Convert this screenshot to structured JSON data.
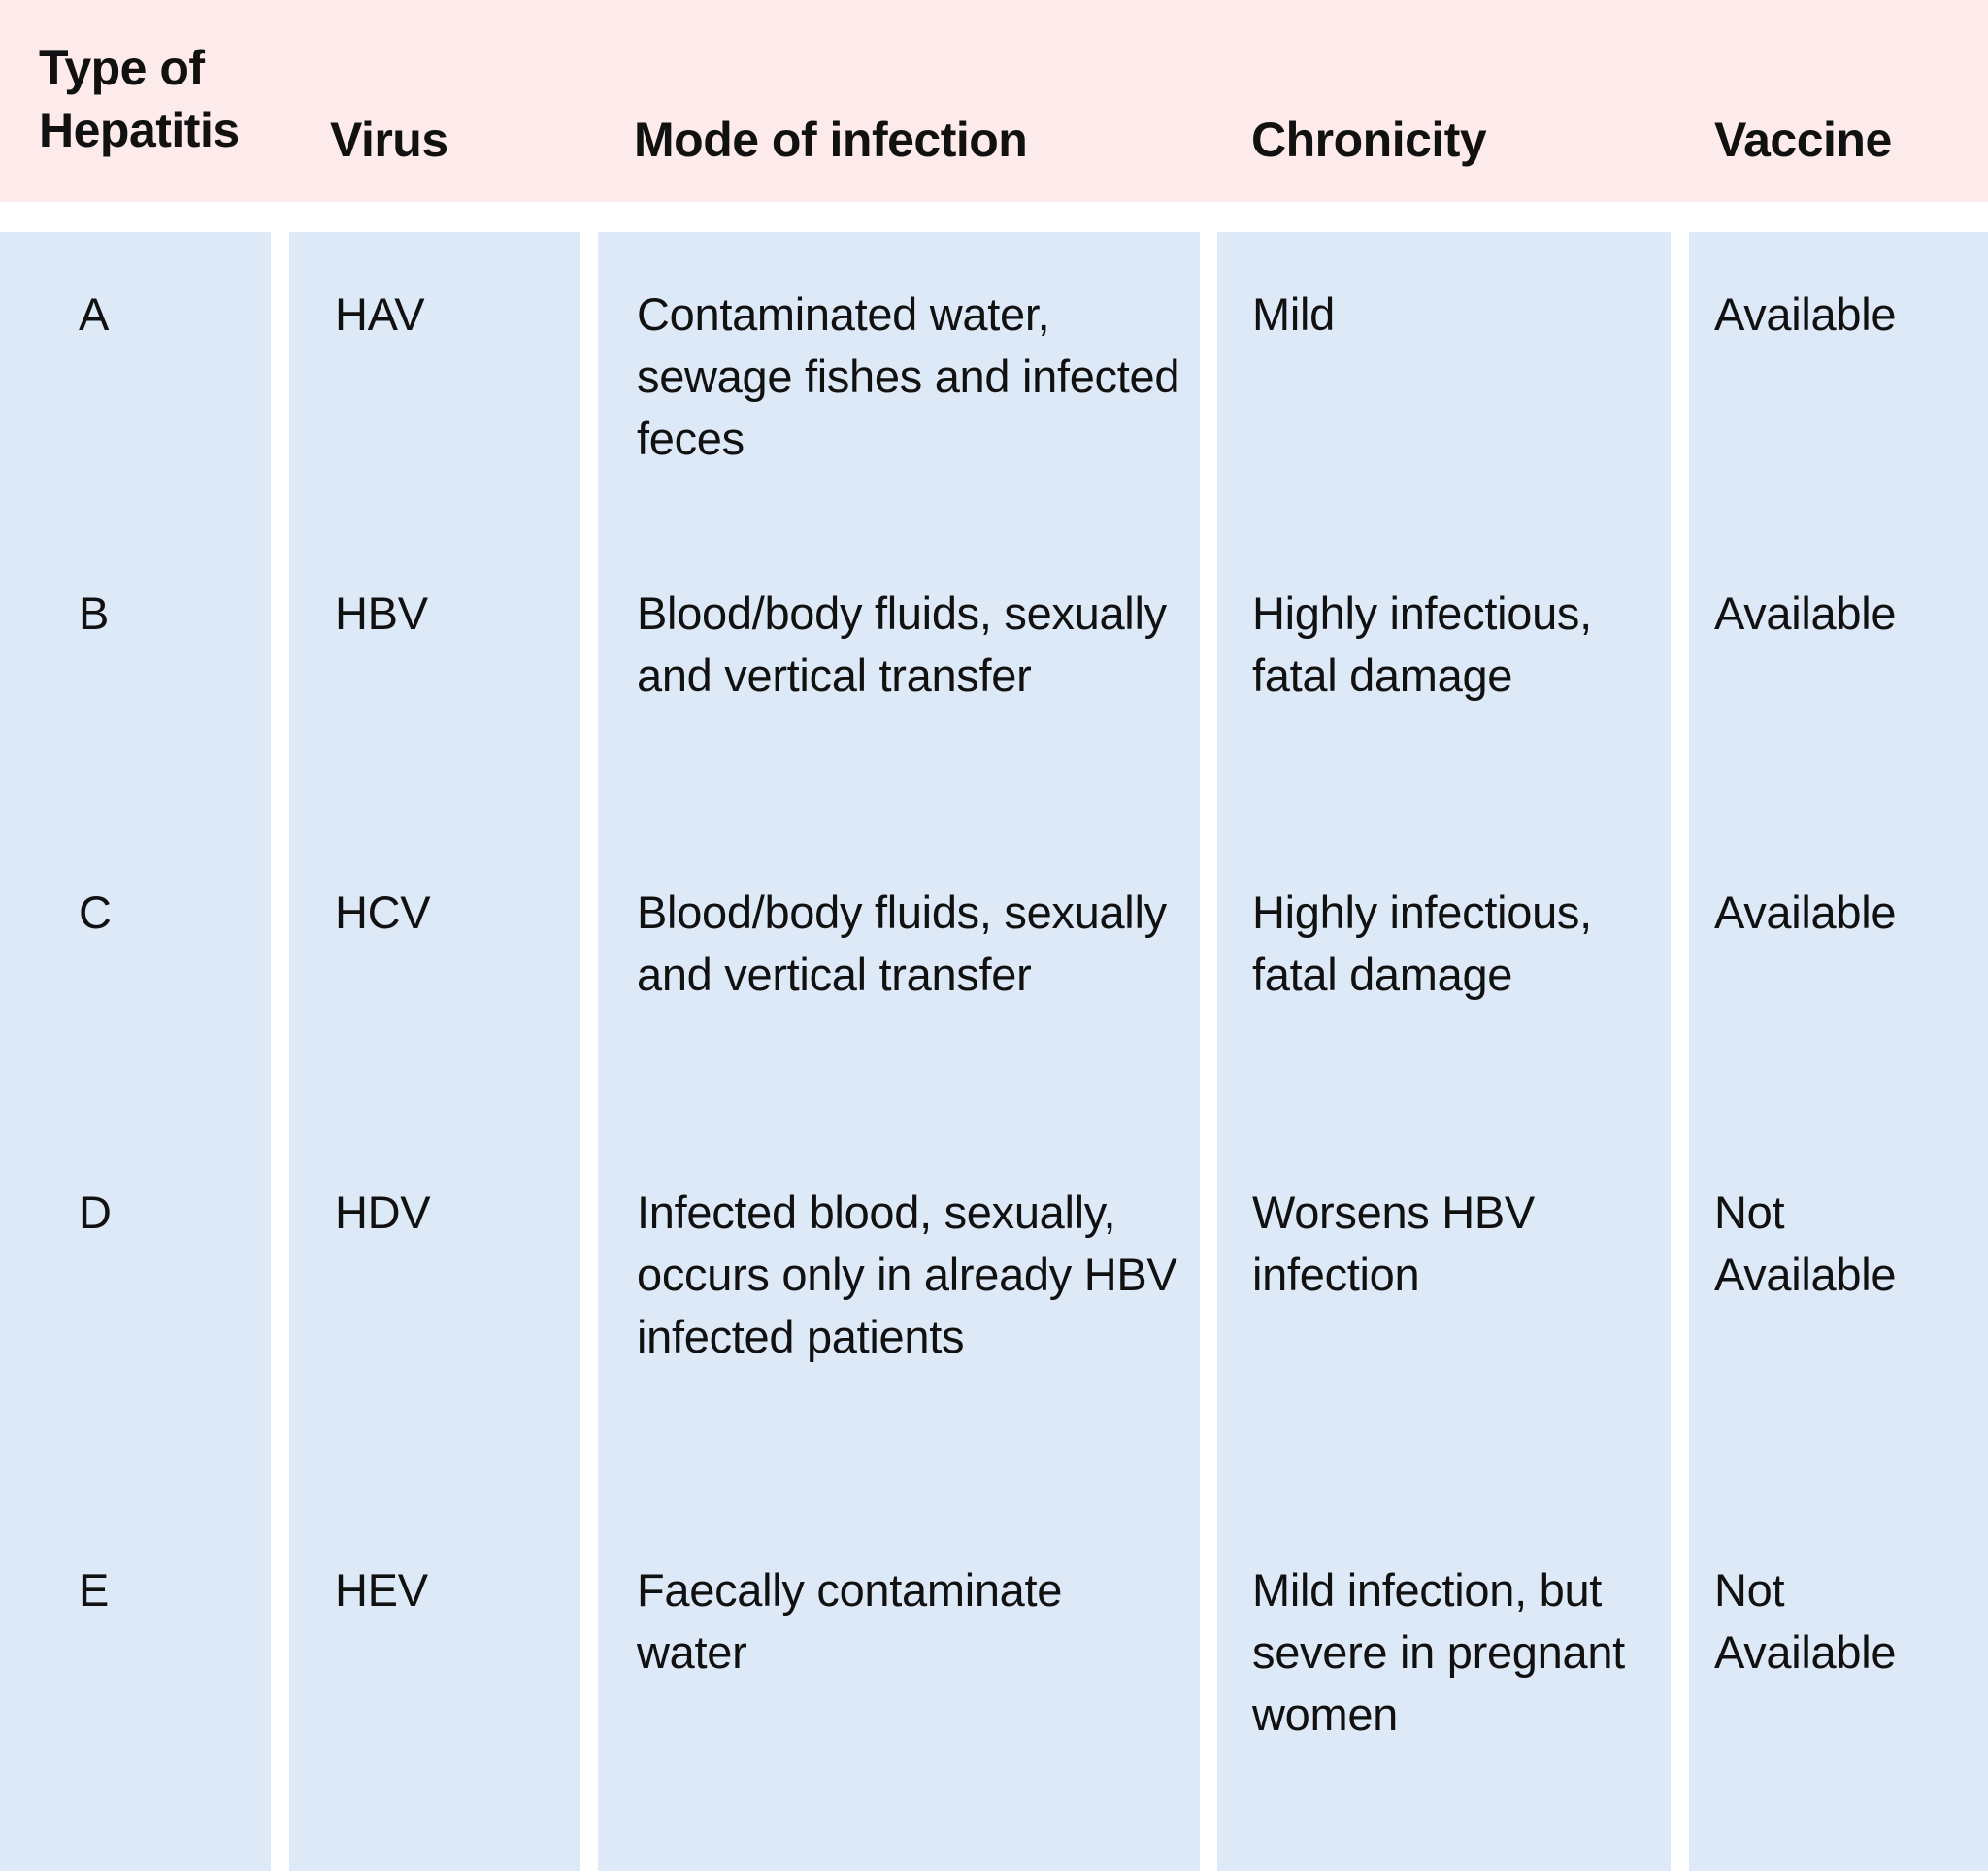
{
  "colors": {
    "header_bg": "#fdeaea",
    "column_bg": "#dde9f7"
  },
  "headers": [
    "Type of Hepatitis",
    "Virus",
    "Mode of infection",
    "Chronicity",
    "Vaccine"
  ],
  "header_type_lines": [
    "Type of",
    "Hepatitis"
  ],
  "rows": [
    {
      "type": "A",
      "virus": "HAV",
      "mode": "Contaminated water, sewage fishes and infected feces",
      "chronicity": "Mild",
      "vaccine": "Available"
    },
    {
      "type": "B",
      "virus": "HBV",
      "mode": "Blood/body fluids, sexually and vertical transfer",
      "chronicity": "Highly infectious, fatal damage",
      "vaccine": "Available"
    },
    {
      "type": "C",
      "virus": "HCV",
      "mode": "Blood/body fluids, sexually and vertical transfer",
      "chronicity": "Highly infectious, fatal damage",
      "vaccine": "Available"
    },
    {
      "type": "D",
      "virus": "HDV",
      "mode": "Infected blood, sexually, occurs only in already HBV infected patients",
      "chronicity": "Worsens HBV infection",
      "vaccine": "Not Available"
    },
    {
      "type": "E",
      "virus": "HEV",
      "mode": "Faecally contaminate water",
      "chronicity": "Mild infection, but severe in pregnant women",
      "vaccine": "Not Available"
    }
  ]
}
